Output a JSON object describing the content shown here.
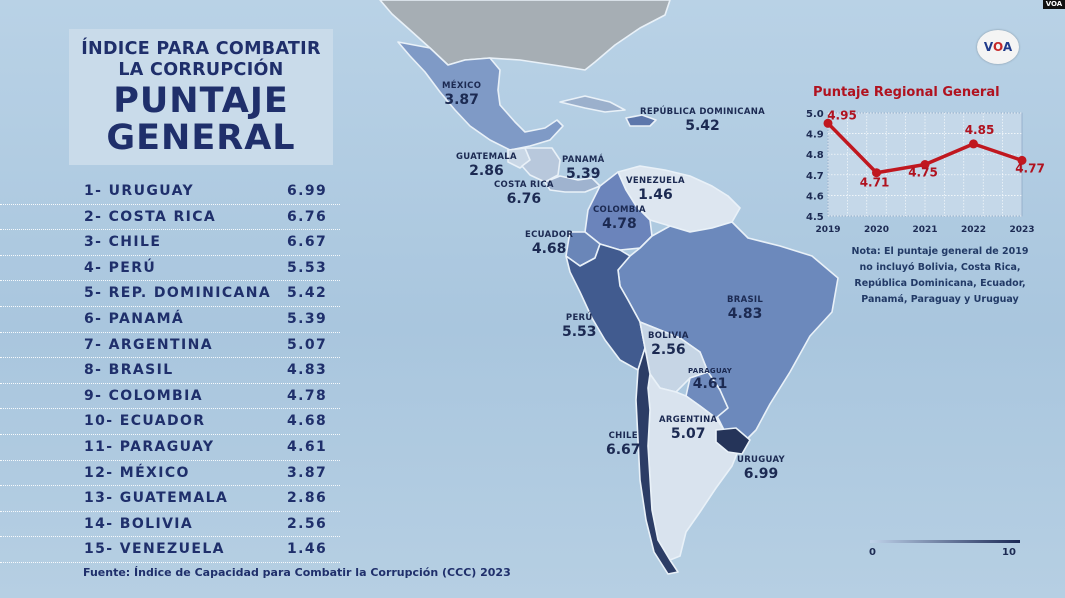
{
  "title": {
    "line1": "ÍNDICE PARA COMBATIR",
    "line2": "LA CORRUPCIÓN",
    "line3": "PUNTAJE",
    "line4": "GENERAL"
  },
  "ranking": [
    {
      "rank": "1-",
      "name": "URUGUAY",
      "value": "6.99"
    },
    {
      "rank": "2-",
      "name": "COSTA RICA",
      "value": "6.76"
    },
    {
      "rank": "3-",
      "name": "CHILE",
      "value": "6.67"
    },
    {
      "rank": "4-",
      "name": "PERÚ",
      "value": "5.53"
    },
    {
      "rank": "5-",
      "name": "REP. DOMINICANA",
      "value": "5.42"
    },
    {
      "rank": "6-",
      "name": "PANAMÁ",
      "value": "5.39"
    },
    {
      "rank": "7-",
      "name": "ARGENTINA",
      "value": "5.07"
    },
    {
      "rank": "8-",
      "name": "BRASIL",
      "value": "4.83"
    },
    {
      "rank": "9-",
      "name": "COLOMBIA",
      "value": "4.78"
    },
    {
      "rank": "10-",
      "name": "ECUADOR",
      "value": "4.68"
    },
    {
      "rank": "11-",
      "name": "PARAGUAY",
      "value": "4.61"
    },
    {
      "rank": "12-",
      "name": "MÉXICO",
      "value": "3.87"
    },
    {
      "rank": "13-",
      "name": "GUATEMALA",
      "value": "2.86"
    },
    {
      "rank": "14-",
      "name": "BOLIVIA",
      "value": "2.56"
    },
    {
      "rank": "15-",
      "name": "VENEZUELA",
      "value": "1.46"
    }
  ],
  "source": "Fuente: Índice de Capacidad para Combatir la Corrupción (CCC) 2023",
  "map_labels": [
    {
      "key": "mexico",
      "name": "MÉXICO",
      "value": "3.87"
    },
    {
      "key": "rep-dominicana",
      "name": "REPÚBLICA DOMINICANA",
      "value": "5.42"
    },
    {
      "key": "guatemala",
      "name": "GUATEMALA",
      "value": "2.86"
    },
    {
      "key": "panama",
      "name": "PANAMÁ",
      "value": "5.39"
    },
    {
      "key": "costa-rica",
      "name": "COSTA RICA",
      "value": "6.76"
    },
    {
      "key": "venezuela",
      "name": "VENEZUELA",
      "value": "1.46"
    },
    {
      "key": "colombia",
      "name": "COLOMBIA",
      "value": "4.78"
    },
    {
      "key": "ecuador",
      "name": "ECUADOR",
      "value": "4.68"
    },
    {
      "key": "peru",
      "name": "PERÚ",
      "value": "5.53"
    },
    {
      "key": "brasil",
      "name": "BRASIL",
      "value": "4.83"
    },
    {
      "key": "bolivia",
      "name": "BOLIVIA",
      "value": "2.56"
    },
    {
      "key": "paraguay",
      "name": "PARAGUAY",
      "value": "4.61"
    },
    {
      "key": "chile",
      "name": "CHILE",
      "value": "6.67"
    },
    {
      "key": "argentina",
      "name": "ARGENTINA",
      "value": "5.07"
    },
    {
      "key": "uruguay",
      "name": "URUGUAY",
      "value": "6.99"
    }
  ],
  "legend": {
    "min": "0",
    "max": "10",
    "low_color": "#bfd3ea",
    "high_color": "#1b2956"
  },
  "logo": {
    "text_v": "V",
    "text_o": "O",
    "text_a": "A"
  },
  "brand_tag": "VOA",
  "colors": {
    "title_blue": "#1f2f6b",
    "chart_red": "#c0171f",
    "ocean": "#b1cce2"
  },
  "chart_data": {
    "type": "line",
    "title": "Puntaje Regional General",
    "x": [
      "2019",
      "2020",
      "2021",
      "2022",
      "2023"
    ],
    "series": [
      {
        "values": [
          4.95,
          4.71,
          4.75,
          4.85,
          4.77
        ]
      }
    ],
    "data_labels": [
      "4.95",
      "4.71",
      "4.75",
      "4.85",
      "4.77"
    ],
    "y_ticks": [
      "5.0",
      "4.9",
      "4.8",
      "4.7",
      "4.6",
      "4.5"
    ],
    "ylim": [
      4.5,
      5.0
    ],
    "grid": true,
    "note": "Nota: El puntaje general de 2019 no incluyó Bolivia, Costa Rica, República Dominicana, Ecuador, Panamá, Paraguay y Uruguay"
  }
}
